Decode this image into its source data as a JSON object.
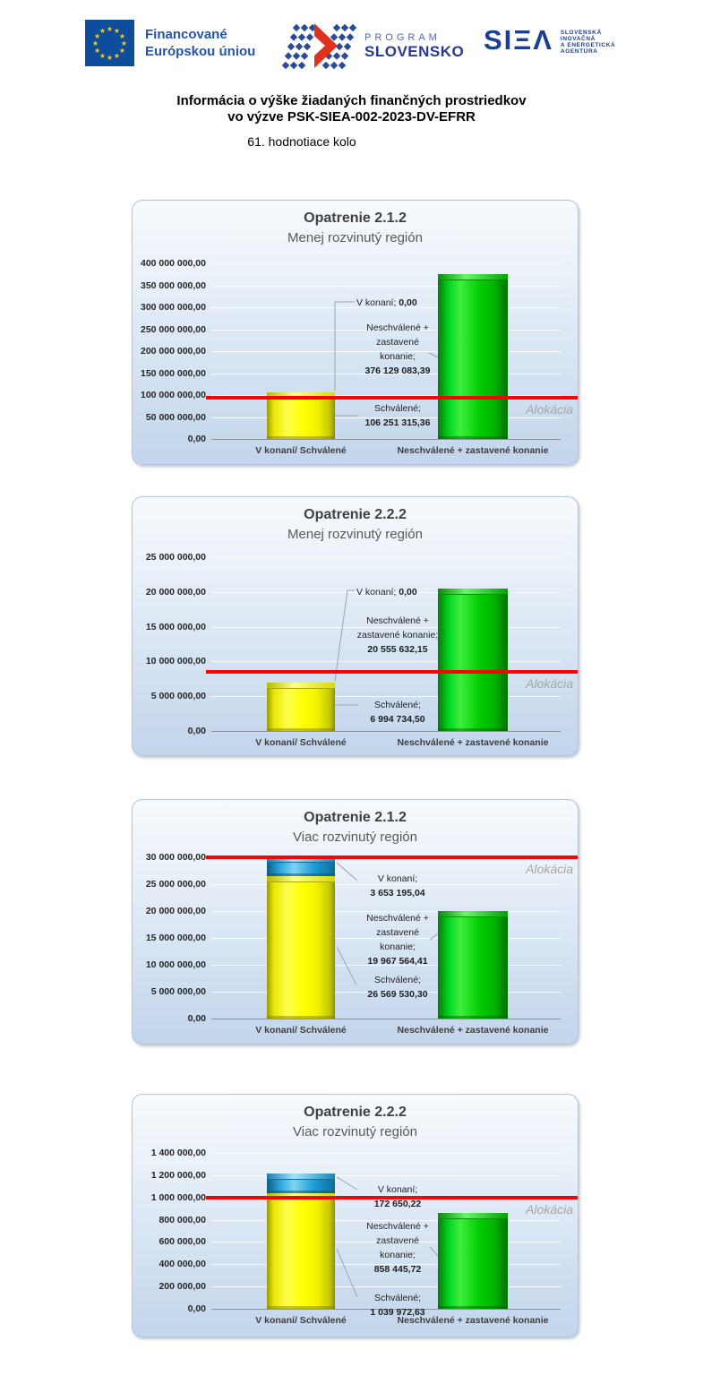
{
  "header": {
    "eu_logo": {
      "line1": "Financované",
      "line2": "Európskou úniou"
    },
    "program_logo": {
      "line1": "PROGRAM",
      "line2": "SLOVENSKO"
    },
    "siea_logo": {
      "name": "SIEA",
      "mark_display": "SIΞΛ",
      "line1": "SLOVENSKÁ",
      "line2": "INOVAČNÁ",
      "line3": "A ENERGETICKÁ",
      "line4": "AGENTÚRA"
    }
  },
  "title": {
    "line1": "Informácia o výške žiadaných finančných prostriedkov",
    "line2": "vo výzve PSK-SIEA-002-2023-DV-EFRR",
    "subtitle": "61. hodnotiace kolo"
  },
  "colors": {
    "bar_schvalene": "#FFFF00",
    "bar_v_konani": "#2FA9DC",
    "bar_neschvalene": "#00CC00",
    "alokacia_line": "#FF0000",
    "alokacia_text": "#A6A6A6"
  },
  "chart_data": [
    {
      "type": "bar",
      "title": "Opatrenie 2.1.2",
      "subtitle": "Menej rozvinutý región",
      "categories": [
        "V konaní/ Schválené",
        "Neschválené + zastavené konanie"
      ],
      "series": [
        {
          "name": "Schválené",
          "values": [
            106251315.36,
            0
          ],
          "color": "#FFFF00"
        },
        {
          "name": "V konaní",
          "values": [
            0,
            0
          ],
          "color": "#2FA9DC"
        },
        {
          "name": "Neschválené + zastavené konanie",
          "values": [
            0,
            376129083.39
          ],
          "color": "#00CC00"
        }
      ],
      "ylim": [
        0,
        400000000
      ],
      "y_ticks": [
        "400 000 000,00",
        "350 000 000,00",
        "300 000 000,00",
        "250 000 000,00",
        "200 000 000,00",
        "150 000 000,00",
        "100 000 000,00",
        "50 000 000,00",
        "0,00"
      ],
      "alokacia_label": "Alokácia",
      "alokacia_line_value_estimate": 93000000,
      "annotations": {
        "v_konani": {
          "label": "V konaní;",
          "value": "0,00"
        },
        "neschvalene": {
          "label_lines": [
            "Neschválené +",
            "zastavené",
            "konanie;"
          ],
          "value": "376 129 083,39"
        },
        "schvalene": {
          "label": "Schválené;",
          "value": "106 251 315,36"
        }
      }
    },
    {
      "type": "bar",
      "title": "Opatrenie 2.2.2",
      "subtitle": "Menej rozvinutý región",
      "categories": [
        "V konaní/ Schválené",
        "Neschválené + zastavené konanie"
      ],
      "series": [
        {
          "name": "Schválené",
          "values": [
            6994734.5,
            0
          ],
          "color": "#FFFF00"
        },
        {
          "name": "V konaní",
          "values": [
            0,
            0
          ],
          "color": "#2FA9DC"
        },
        {
          "name": "Neschválené + zastavené konanie",
          "values": [
            0,
            20555632.15
          ],
          "color": "#00CC00"
        }
      ],
      "ylim": [
        0,
        25000000
      ],
      "y_ticks": [
        "25 000 000,00",
        "20 000 000,00",
        "15 000 000,00",
        "10 000 000,00",
        "5 000 000,00",
        "0,00"
      ],
      "alokacia_label": "Alokácia",
      "alokacia_line_value_estimate": 8500000,
      "annotations": {
        "v_konani": {
          "label": "V konaní;",
          "value": "0,00"
        },
        "neschvalene": {
          "label_lines": [
            "Neschválené +",
            "zastavené konanie;"
          ],
          "value": "20 555 632,15"
        },
        "schvalene": {
          "label": "Schválené;",
          "value": "6 994 734,50"
        }
      }
    },
    {
      "type": "bar",
      "title": "Opatrenie 2.1.2",
      "subtitle": "Viac rozvinutý región",
      "categories": [
        "V konaní/ Schválené",
        "Neschválené + zastavené konanie"
      ],
      "series": [
        {
          "name": "Schválené",
          "values": [
            26569530.3,
            0
          ],
          "color": "#FFFF00"
        },
        {
          "name": "V konaní",
          "values": [
            3653195.04,
            0
          ],
          "color": "#2FA9DC"
        },
        {
          "name": "Neschválené + zastavené konanie",
          "values": [
            0,
            19967564.41
          ],
          "color": "#00CC00"
        }
      ],
      "ylim": [
        0,
        30000000
      ],
      "y_ticks": [
        "30 000 000,00",
        "25 000 000,00",
        "20 000 000,00",
        "15 000 000,00",
        "10 000 000,00",
        "5 000 000,00",
        "0,00"
      ],
      "alokacia_label": "Alokácia",
      "alokacia_line_value_estimate": 30000000,
      "annotations": {
        "v_konani": {
          "label": "V konaní;",
          "value": "3 653 195,04"
        },
        "neschvalene": {
          "label_lines": [
            "Neschválené +",
            "zastavené",
            "konanie;"
          ],
          "value": "19 967 564,41"
        },
        "schvalene": {
          "label": "Schválené;",
          "value": "26 569 530,30"
        }
      }
    },
    {
      "type": "bar",
      "title": "Opatrenie 2.2.2",
      "subtitle": "Viac rozvinutý región",
      "categories": [
        "V konaní/ Schválené",
        "Neschválené + zastavené konanie"
      ],
      "series": [
        {
          "name": "Schválené",
          "values": [
            1039972.63,
            0
          ],
          "color": "#FFFF00"
        },
        {
          "name": "V konaní",
          "values": [
            172650.22,
            0
          ],
          "color": "#2FA9DC"
        },
        {
          "name": "Neschválené + zastavené konanie",
          "values": [
            0,
            858445.72
          ],
          "color": "#00CC00"
        }
      ],
      "ylim": [
        0,
        1400000
      ],
      "y_ticks": [
        "1 400 000,00",
        "1 200 000,00",
        "1 000 000,00",
        "800 000,00",
        "600 000,00",
        "400 000,00",
        "200 000,00",
        "0,00"
      ],
      "alokacia_label": "Alokácia",
      "alokacia_line_value_estimate": 1000000,
      "annotations": {
        "v_konani": {
          "label": "V konaní;",
          "value": "172 650,22"
        },
        "neschvalene": {
          "label_lines": [
            "Neschválené +",
            "zastavené",
            "konanie;"
          ],
          "value": "858 445,72"
        },
        "schvalene": {
          "label": "Schválené;",
          "value": "1 039 972,63"
        }
      }
    }
  ]
}
